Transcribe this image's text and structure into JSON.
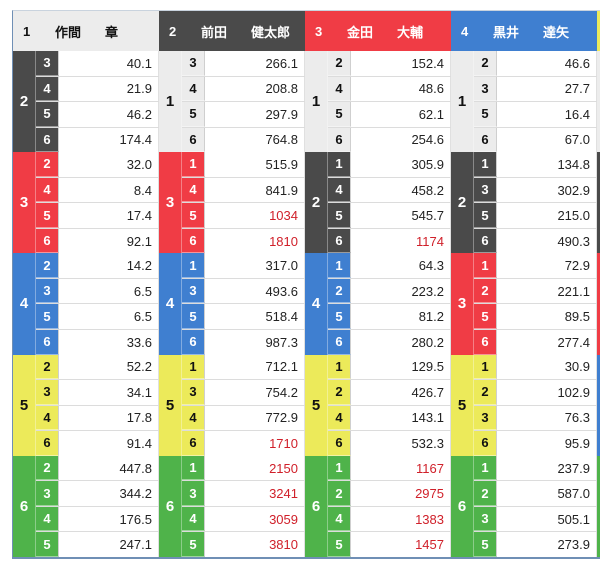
{
  "colors": {
    "boat1": "#ececec",
    "boat2": "#4a4a4a",
    "boat3": "#f03c45",
    "boat4": "#3f7fd0",
    "boat5": "#ecea5a",
    "boat6": "#4fb34a",
    "high_odds_text": "#d0202a"
  },
  "columns": [
    {
      "boat": "1",
      "surname": "作間",
      "given": "章",
      "color_class": "c1",
      "groups": [
        {
          "second": "2",
          "color_class": "c2",
          "rows": [
            {
              "third": "3",
              "odds": "40.1",
              "hot": false
            },
            {
              "third": "4",
              "odds": "21.9",
              "hot": false
            },
            {
              "third": "5",
              "odds": "46.2",
              "hot": false
            },
            {
              "third": "6",
              "odds": "174.4",
              "hot": false
            }
          ]
        },
        {
          "second": "3",
          "color_class": "c3",
          "rows": [
            {
              "third": "2",
              "odds": "32.0",
              "hot": false
            },
            {
              "third": "4",
              "odds": "8.4",
              "hot": false
            },
            {
              "third": "5",
              "odds": "17.4",
              "hot": false
            },
            {
              "third": "6",
              "odds": "92.1",
              "hot": false
            }
          ]
        },
        {
          "second": "4",
          "color_class": "c4",
          "rows": [
            {
              "third": "2",
              "odds": "14.2",
              "hot": false
            },
            {
              "third": "3",
              "odds": "6.5",
              "hot": false
            },
            {
              "third": "5",
              "odds": "6.5",
              "hot": false
            },
            {
              "third": "6",
              "odds": "33.6",
              "hot": false
            }
          ]
        },
        {
          "second": "5",
          "color_class": "c5",
          "rows": [
            {
              "third": "2",
              "odds": "52.2",
              "hot": false
            },
            {
              "third": "3",
              "odds": "34.1",
              "hot": false
            },
            {
              "third": "4",
              "odds": "17.8",
              "hot": false
            },
            {
              "third": "6",
              "odds": "91.4",
              "hot": false
            }
          ]
        },
        {
          "second": "6",
          "color_class": "c6",
          "rows": [
            {
              "third": "2",
              "odds": "447.8",
              "hot": false
            },
            {
              "third": "3",
              "odds": "344.2",
              "hot": false
            },
            {
              "third": "4",
              "odds": "176.5",
              "hot": false
            },
            {
              "third": "5",
              "odds": "247.1",
              "hot": false
            }
          ]
        }
      ]
    },
    {
      "boat": "2",
      "surname": "前田",
      "given": "健太郎",
      "color_class": "c2",
      "groups": [
        {
          "second": "1",
          "color_class": "c1",
          "rows": [
            {
              "third": "3",
              "odds": "266.1",
              "hot": false
            },
            {
              "third": "4",
              "odds": "208.8",
              "hot": false
            },
            {
              "third": "5",
              "odds": "297.9",
              "hot": false
            },
            {
              "third": "6",
              "odds": "764.8",
              "hot": false
            }
          ]
        },
        {
          "second": "3",
          "color_class": "c3",
          "rows": [
            {
              "third": "1",
              "odds": "515.9",
              "hot": false
            },
            {
              "third": "4",
              "odds": "841.9",
              "hot": false
            },
            {
              "third": "5",
              "odds": "1034",
              "hot": true
            },
            {
              "third": "6",
              "odds": "1810",
              "hot": true
            }
          ]
        },
        {
          "second": "4",
          "color_class": "c4",
          "rows": [
            {
              "third": "1",
              "odds": "317.0",
              "hot": false
            },
            {
              "third": "3",
              "odds": "493.6",
              "hot": false
            },
            {
              "third": "5",
              "odds": "518.4",
              "hot": false
            },
            {
              "third": "6",
              "odds": "987.3",
              "hot": false
            }
          ]
        },
        {
          "second": "5",
          "color_class": "c5",
          "rows": [
            {
              "third": "1",
              "odds": "712.1",
              "hot": false
            },
            {
              "third": "3",
              "odds": "754.2",
              "hot": false
            },
            {
              "third": "4",
              "odds": "772.9",
              "hot": false
            },
            {
              "third": "6",
              "odds": "1710",
              "hot": true
            }
          ]
        },
        {
          "second": "6",
          "color_class": "c6",
          "rows": [
            {
              "third": "1",
              "odds": "2150",
              "hot": true
            },
            {
              "third": "3",
              "odds": "3241",
              "hot": true
            },
            {
              "third": "4",
              "odds": "3059",
              "hot": true
            },
            {
              "third": "5",
              "odds": "3810",
              "hot": true
            }
          ]
        }
      ]
    },
    {
      "boat": "3",
      "surname": "金田",
      "given": "大輔",
      "color_class": "c3",
      "groups": [
        {
          "second": "1",
          "color_class": "c1",
          "rows": [
            {
              "third": "2",
              "odds": "152.4",
              "hot": false
            },
            {
              "third": "4",
              "odds": "48.6",
              "hot": false
            },
            {
              "third": "5",
              "odds": "62.1",
              "hot": false
            },
            {
              "third": "6",
              "odds": "254.6",
              "hot": false
            }
          ]
        },
        {
          "second": "2",
          "color_class": "c2",
          "rows": [
            {
              "third": "1",
              "odds": "305.9",
              "hot": false
            },
            {
              "third": "4",
              "odds": "458.2",
              "hot": false
            },
            {
              "third": "5",
              "odds": "545.7",
              "hot": false
            },
            {
              "third": "6",
              "odds": "1174",
              "hot": true
            }
          ]
        },
        {
          "second": "4",
          "color_class": "c4",
          "rows": [
            {
              "third": "1",
              "odds": "64.3",
              "hot": false
            },
            {
              "third": "2",
              "odds": "223.2",
              "hot": false
            },
            {
              "third": "5",
              "odds": "81.2",
              "hot": false
            },
            {
              "third": "6",
              "odds": "280.2",
              "hot": false
            }
          ]
        },
        {
          "second": "5",
          "color_class": "c5",
          "rows": [
            {
              "third": "1",
              "odds": "129.5",
              "hot": false
            },
            {
              "third": "2",
              "odds": "426.7",
              "hot": false
            },
            {
              "third": "4",
              "odds": "143.1",
              "hot": false
            },
            {
              "third": "6",
              "odds": "532.3",
              "hot": false
            }
          ]
        },
        {
          "second": "6",
          "color_class": "c6",
          "rows": [
            {
              "third": "1",
              "odds": "1167",
              "hot": true
            },
            {
              "third": "2",
              "odds": "2975",
              "hot": true
            },
            {
              "third": "4",
              "odds": "1383",
              "hot": true
            },
            {
              "third": "5",
              "odds": "1457",
              "hot": true
            }
          ]
        }
      ]
    },
    {
      "boat": "4",
      "surname": "黒井",
      "given": "達矢",
      "color_class": "c4",
      "groups": [
        {
          "second": "1",
          "color_class": "c1",
          "rows": [
            {
              "third": "2",
              "odds": "46.6",
              "hot": false
            },
            {
              "third": "3",
              "odds": "27.7",
              "hot": false
            },
            {
              "third": "5",
              "odds": "16.4",
              "hot": false
            },
            {
              "third": "6",
              "odds": "67.0",
              "hot": false
            }
          ]
        },
        {
          "second": "2",
          "color_class": "c2",
          "rows": [
            {
              "third": "1",
              "odds": "134.8",
              "hot": false
            },
            {
              "third": "3",
              "odds": "302.9",
              "hot": false
            },
            {
              "third": "5",
              "odds": "215.0",
              "hot": false
            },
            {
              "third": "6",
              "odds": "490.3",
              "hot": false
            }
          ]
        },
        {
          "second": "3",
          "color_class": "c3",
          "rows": [
            {
              "third": "1",
              "odds": "72.9",
              "hot": false
            },
            {
              "third": "2",
              "odds": "221.1",
              "hot": false
            },
            {
              "third": "5",
              "odds": "89.5",
              "hot": false
            },
            {
              "third": "6",
              "odds": "277.4",
              "hot": false
            }
          ]
        },
        {
          "second": "5",
          "color_class": "c5",
          "rows": [
            {
              "third": "1",
              "odds": "30.9",
              "hot": false
            },
            {
              "third": "2",
              "odds": "102.9",
              "hot": false
            },
            {
              "third": "3",
              "odds": "76.3",
              "hot": false
            },
            {
              "third": "6",
              "odds": "95.9",
              "hot": false
            }
          ]
        },
        {
          "second": "6",
          "color_class": "c6",
          "rows": [
            {
              "third": "1",
              "odds": "237.9",
              "hot": false
            },
            {
              "third": "2",
              "odds": "587.0",
              "hot": false
            },
            {
              "third": "3",
              "odds": "505.1",
              "hot": false
            },
            {
              "third": "5",
              "odds": "273.9",
              "hot": false
            }
          ]
        }
      ]
    }
  ],
  "partial_column": {
    "header_color_class": "c5",
    "group_color_classes": [
      "c1",
      "c2",
      "c3",
      "c4",
      "c6"
    ]
  }
}
